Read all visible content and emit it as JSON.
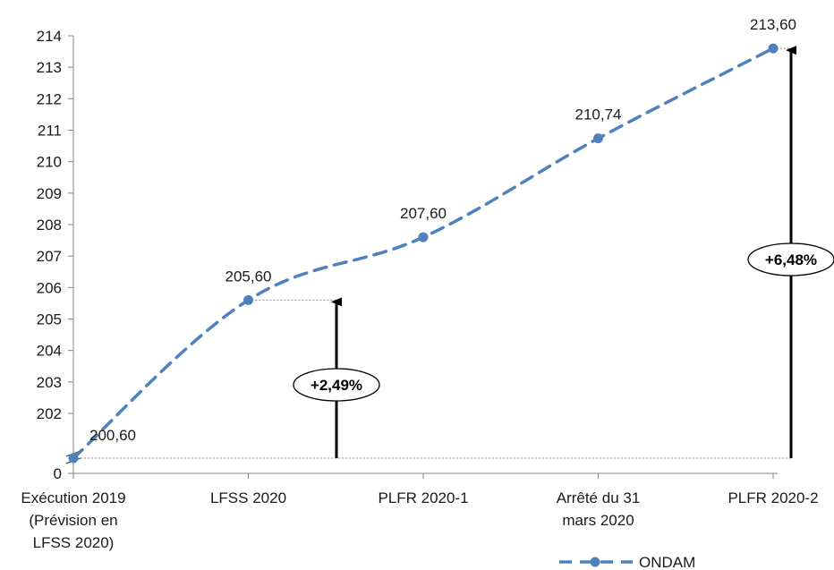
{
  "chart_data": {
    "type": "line",
    "categories": [
      [
        "Exécution 2019",
        "(Prévision en",
        "LFSS 2020)"
      ],
      [
        "LFSS 2020"
      ],
      [
        "PLFR 2020-1"
      ],
      [
        "Arrêté du 31",
        "mars 2020"
      ],
      [
        "PLFR 2020-2"
      ]
    ],
    "series": [
      {
        "name": "ONDAM",
        "values": [
          200.6,
          205.6,
          207.6,
          210.74,
          213.6
        ],
        "labels": [
          "200,60",
          "205,60",
          "207,60",
          "210,74",
          "213,60"
        ],
        "color": "#4f81bd"
      }
    ],
    "ylim": [
      202,
      214
    ],
    "yticks": [
      "214",
      "213",
      "212",
      "211",
      "210",
      "209",
      "208",
      "207",
      "206",
      "205",
      "204",
      "203",
      "202"
    ],
    "y_axis_break": true,
    "y_axis_zero_label": "0",
    "legend": "bottom-right",
    "grid": false,
    "annotations": [
      {
        "label": "+2,49%",
        "from": 200.6,
        "to": 205.6
      },
      {
        "label": "+6,48%",
        "from": 200.6,
        "to": 213.6
      }
    ]
  }
}
